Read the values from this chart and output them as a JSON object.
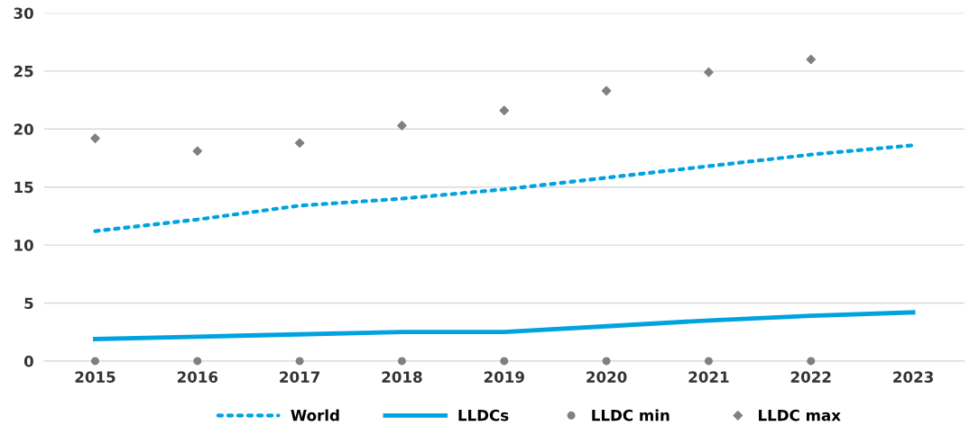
{
  "chart_data": {
    "type": "line",
    "categories": [
      "2015",
      "2016",
      "2017",
      "2018",
      "2019",
      "2020",
      "2021",
      "2022",
      "2023"
    ],
    "series": [
      {
        "name": "World",
        "line_style": "dotted",
        "color": "#00a3e0",
        "values": [
          11.2,
          12.2,
          13.4,
          14.0,
          14.8,
          15.8,
          16.8,
          17.8,
          18.6
        ]
      },
      {
        "name": "LLDCs",
        "line_style": "solid",
        "color": "#00a3e0",
        "values": [
          1.9,
          2.1,
          2.3,
          2.5,
          2.5,
          3.0,
          3.5,
          3.9,
          4.2
        ]
      },
      {
        "name": "LLDC min",
        "type": "scatter",
        "marker": "circle",
        "color": "#808080",
        "values": [
          0,
          0,
          0,
          0,
          0,
          0,
          0,
          0,
          null
        ]
      },
      {
        "name": "LLDC max",
        "type": "scatter",
        "marker": "diamond",
        "color": "#808080",
        "values": [
          19.2,
          18.1,
          18.8,
          20.3,
          21.6,
          23.3,
          24.9,
          26.0,
          null
        ]
      }
    ],
    "ylim": [
      0,
      30
    ],
    "yticks": [
      0,
      5,
      10,
      15,
      20,
      25,
      30
    ],
    "grid": "y",
    "legend": "bottom"
  }
}
